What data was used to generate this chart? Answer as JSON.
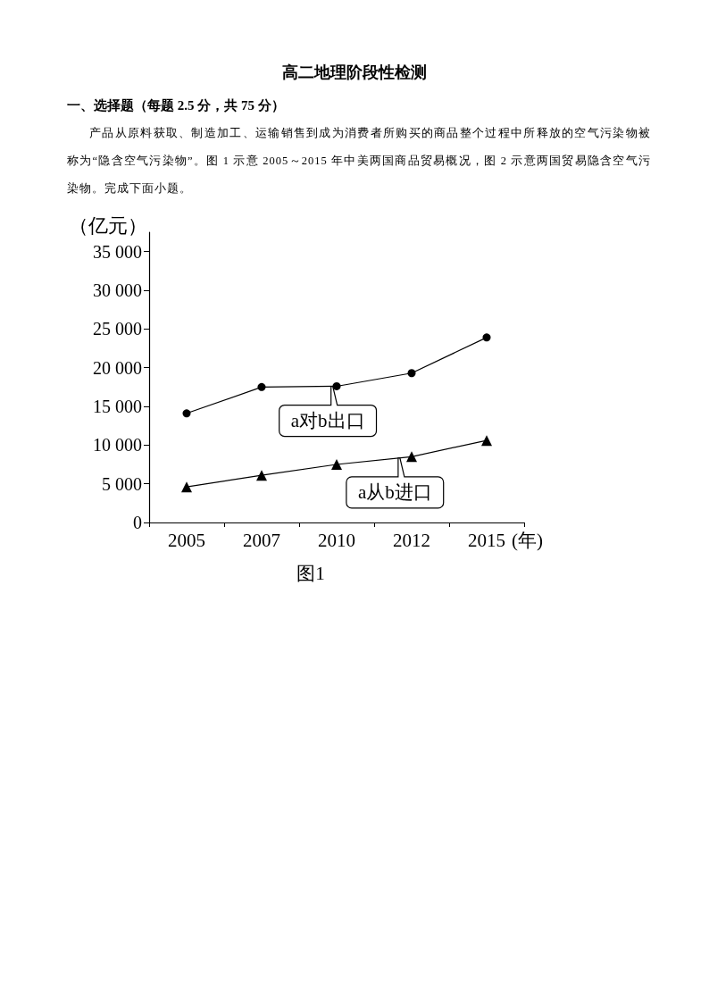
{
  "chart_data": {
    "type": "line",
    "title": "高二地理阶段性检测",
    "subtitle": "一、选择题（每题 2.5 分，共 75 分）",
    "annotations": [
      "产品从原料获取、制造加工、运输销售到成为消费者所购买的商品整个过程中所释放的空气污染物被称为“隐含空气污染物”。图 1 示意 2005～2015 年中美两国商品贸易概况，图 2 示意两国贸易隐含空气污染物。完成下面小题。",
      "图1"
    ],
    "xlabel": "(年)",
    "ylabel": "（亿元）",
    "categories": [
      "2005",
      "2007",
      "2010",
      "2012",
      "2015"
    ],
    "series": [
      {
        "name": "a对b出口",
        "color": "#000000",
        "marker": "circle",
        "values": [
          14100,
          17500,
          17600,
          19300,
          23900
        ]
      },
      {
        "name": "a从b进口",
        "color": "#000000",
        "marker": "triangle",
        "values": [
          4600,
          6100,
          7500,
          8500,
          10600
        ]
      }
    ],
    "ylim": [
      0,
      37500
    ],
    "yticks": [
      0,
      {
        "value": 5000,
        "label": "5 000"
      },
      {
        "value": 10000,
        "label": "10 000"
      },
      {
        "value": 15000,
        "label": "15 000"
      },
      {
        "value": 20000,
        "label": "20 000"
      },
      {
        "value": 25000,
        "label": "25 000"
      },
      {
        "value": 30000,
        "label": "30 000"
      },
      {
        "value": 35000,
        "label": "35 000"
      }
    ],
    "grid": false,
    "legend": false
  }
}
